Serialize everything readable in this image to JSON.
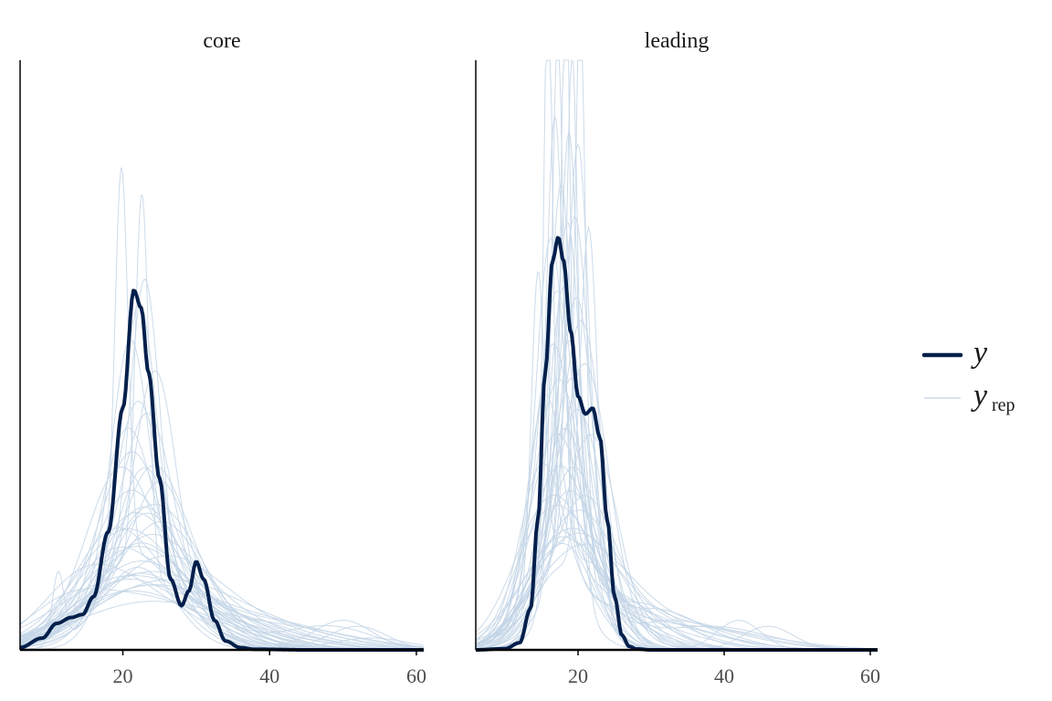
{
  "chart_data": {
    "type": "density",
    "colors": {
      "y": "#011f4b",
      "yrep": "#c3d5e6",
      "axis": "#000000"
    },
    "xlim": [
      6,
      61
    ],
    "x_ticks": [
      20,
      40,
      60
    ],
    "legend": {
      "placement": "right",
      "entries": [
        {
          "key": "y",
          "main": "y",
          "sub": ""
        },
        {
          "key": "yrep",
          "main": "y",
          "sub": "rep"
        }
      ]
    },
    "panels": [
      {
        "title": "core",
        "y_max": 1.0,
        "observed": {
          "name": "y",
          "x": [
            6,
            9,
            11,
            13,
            14.5,
            16,
            18,
            20,
            21.5,
            22.5,
            23.5,
            25,
            26.5,
            28,
            29,
            30,
            31,
            32.5,
            34,
            36,
            38,
            45,
            61
          ],
          "y": [
            0.004,
            0.02,
            0.045,
            0.055,
            0.06,
            0.09,
            0.2,
            0.41,
            0.61,
            0.58,
            0.47,
            0.29,
            0.12,
            0.075,
            0.1,
            0.15,
            0.12,
            0.05,
            0.015,
            0.004,
            0.001,
            0.0,
            0.0
          ]
        },
        "replicates": [
          {
            "peak": 19.8,
            "width": 0.9,
            "height": 0.67,
            "bg_peak": 22,
            "bg_width": 6,
            "bg_height": 0.16
          },
          {
            "peak": 22.6,
            "width": 0.9,
            "height": 0.63,
            "bg_peak": 21,
            "bg_width": 6,
            "bg_height": 0.15
          },
          {
            "peak": 23.0,
            "width": 2.0,
            "height": 0.51,
            "bg_peak": 22,
            "bg_width": 7,
            "bg_height": 0.12
          },
          {
            "peak": 22.2,
            "width": 2.4,
            "height": 0.48,
            "bg_peak": 24,
            "bg_width": 7,
            "bg_height": 0.11
          },
          {
            "peak": 21.0,
            "width": 2.5,
            "height": 0.41,
            "bg_peak": 23,
            "bg_width": 8,
            "bg_height": 0.12
          },
          {
            "peak": 24.5,
            "width": 2.8,
            "height": 0.37,
            "bg_peak": 22,
            "bg_width": 7,
            "bg_height": 0.11
          },
          {
            "peak": 22.0,
            "width": 3.2,
            "height": 0.34,
            "bg_peak": 26,
            "bg_width": 9,
            "bg_height": 0.09
          },
          {
            "peak": 23.5,
            "width": 3.5,
            "height": 0.31,
            "bg_peak": 20,
            "bg_width": 8,
            "bg_height": 0.1
          },
          {
            "peak": 20.5,
            "width": 3.5,
            "height": 0.29,
            "bg_peak": 25,
            "bg_width": 8,
            "bg_height": 0.1
          },
          {
            "peak": 22.5,
            "width": 4.0,
            "height": 0.27,
            "bg_peak": 30,
            "bg_width": 6,
            "bg_height": 0.08
          },
          {
            "peak": 21.5,
            "width": 4.2,
            "height": 0.25,
            "bg_peak": 19,
            "bg_width": 8,
            "bg_height": 0.09
          },
          {
            "peak": 24.0,
            "width": 4.5,
            "height": 0.24,
            "bg_peak": 28,
            "bg_width": 9,
            "bg_height": 0.08
          },
          {
            "peak": 19.5,
            "width": 4.5,
            "height": 0.23,
            "bg_peak": 24,
            "bg_width": 9,
            "bg_height": 0.09
          },
          {
            "peak": 25.5,
            "width": 4.0,
            "height": 0.22,
            "bg_peak": 21,
            "bg_width": 7,
            "bg_height": 0.08
          },
          {
            "peak": 22.8,
            "width": 5.0,
            "height": 0.21,
            "bg_peak": 33,
            "bg_width": 7,
            "bg_height": 0.06
          },
          {
            "peak": 20.8,
            "width": 5.0,
            "height": 0.2,
            "bg_peak": 26,
            "bg_width": 10,
            "bg_height": 0.08
          },
          {
            "peak": 23.8,
            "width": 5.5,
            "height": 0.19,
            "bg_peak": 18,
            "bg_width": 7,
            "bg_height": 0.07
          },
          {
            "peak": 21.2,
            "width": 5.5,
            "height": 0.18,
            "bg_peak": 29,
            "bg_width": 10,
            "bg_height": 0.07
          },
          {
            "peak": 24.8,
            "width": 6.0,
            "height": 0.17,
            "bg_peak": 22,
            "bg_width": 9,
            "bg_height": 0.08
          },
          {
            "peak": 22.0,
            "width": 6.0,
            "height": 0.17,
            "bg_peak": 36,
            "bg_width": 8,
            "bg_height": 0.05
          },
          {
            "peak": 18.5,
            "width": 5.5,
            "height": 0.16,
            "bg_peak": 27,
            "bg_width": 9,
            "bg_height": 0.07
          },
          {
            "peak": 26.0,
            "width": 5.5,
            "height": 0.16,
            "bg_peak": 20,
            "bg_width": 9,
            "bg_height": 0.07
          },
          {
            "peak": 23.2,
            "width": 6.5,
            "height": 0.15,
            "bg_peak": 31,
            "bg_width": 10,
            "bg_height": 0.06
          },
          {
            "peak": 20.2,
            "width": 6.5,
            "height": 0.15,
            "bg_peak": 25,
            "bg_width": 11,
            "bg_height": 0.06
          },
          {
            "peak": 21.8,
            "width": 7.0,
            "height": 0.14,
            "bg_peak": 38,
            "bg_width": 9,
            "bg_height": 0.05
          },
          {
            "peak": 24.2,
            "width": 7.0,
            "height": 0.14,
            "bg_peak": 17,
            "bg_width": 6,
            "bg_height": 0.06
          },
          {
            "peak": 19.0,
            "width": 6.0,
            "height": 0.13,
            "bg_peak": 28,
            "bg_width": 11,
            "bg_height": 0.06
          },
          {
            "peak": 22.4,
            "width": 7.5,
            "height": 0.13,
            "bg_peak": 50,
            "bg_width": 4,
            "bg_height": 0.05
          },
          {
            "peak": 25.0,
            "width": 7.5,
            "height": 0.12,
            "bg_peak": 33,
            "bg_width": 11,
            "bg_height": 0.05
          },
          {
            "peak": 21.0,
            "width": 8.0,
            "height": 0.12,
            "bg_peak": 52,
            "bg_width": 4,
            "bg_height": 0.04
          },
          {
            "peak": 11.2,
            "width": 0.8,
            "height": 0.12,
            "bg_peak": 22,
            "bg_width": 5,
            "bg_height": 0.14
          },
          {
            "peak": 23.6,
            "width": 8.0,
            "height": 0.11,
            "bg_peak": 48,
            "bg_width": 6,
            "bg_height": 0.04
          },
          {
            "peak": 20.0,
            "width": 8.5,
            "height": 0.11,
            "bg_peak": 14,
            "bg_width": 5,
            "bg_height": 0.05
          },
          {
            "peak": 22.9,
            "width": 9.0,
            "height": 0.1,
            "bg_peak": 40,
            "bg_width": 10,
            "bg_height": 0.04
          },
          {
            "peak": 26.5,
            "width": 8.0,
            "height": 0.1,
            "bg_peak": 18,
            "bg_width": 8,
            "bg_height": 0.05
          },
          {
            "peak": 21.4,
            "width": 9.0,
            "height": 0.1,
            "bg_peak": 54,
            "bg_width": 5,
            "bg_height": 0.02
          },
          {
            "peak": 24.6,
            "width": 9.5,
            "height": 0.09,
            "bg_peak": 35,
            "bg_width": 12,
            "bg_height": 0.04
          },
          {
            "peak": 19.3,
            "width": 9.0,
            "height": 0.09,
            "bg_peak": 30,
            "bg_width": 12,
            "bg_height": 0.05
          },
          {
            "peak": 22.1,
            "width": 10.0,
            "height": 0.09,
            "bg_peak": 12,
            "bg_width": 5,
            "bg_height": 0.04
          },
          {
            "peak": 23.4,
            "width": 10.0,
            "height": 0.08,
            "bg_peak": 44,
            "bg_width": 9,
            "bg_height": 0.03
          }
        ]
      },
      {
        "title": "leading",
        "y_max": 1.0,
        "observed": {
          "name": "y",
          "x": [
            6,
            10,
            12,
            13.5,
            14.5,
            15.5,
            16.5,
            17.3,
            18,
            19,
            20,
            21,
            22,
            23,
            24,
            25,
            26,
            27,
            28,
            30,
            40,
            61
          ],
          "y": [
            0.0,
            0.002,
            0.012,
            0.07,
            0.22,
            0.47,
            0.66,
            0.7,
            0.66,
            0.54,
            0.43,
            0.4,
            0.41,
            0.36,
            0.22,
            0.09,
            0.025,
            0.006,
            0.0015,
            0.0,
            0.0,
            0.0
          ]
        },
        "replicates": [
          {
            "peak": 15.9,
            "width": 0.6,
            "height": 1.0,
            "bg_peak": 18,
            "bg_width": 4,
            "bg_height": 0.2
          },
          {
            "peak": 18.3,
            "width": 0.6,
            "height": 1.0,
            "bg_peak": 19,
            "bg_width": 4,
            "bg_height": 0.2
          },
          {
            "peak": 20.3,
            "width": 0.7,
            "height": 0.95,
            "bg_peak": 18,
            "bg_width": 4.5,
            "bg_height": 0.18
          },
          {
            "peak": 17.2,
            "width": 0.8,
            "height": 0.9,
            "bg_peak": 20,
            "bg_width": 4,
            "bg_height": 0.18
          },
          {
            "peak": 19.2,
            "width": 0.8,
            "height": 0.86,
            "bg_peak": 17,
            "bg_width": 4.5,
            "bg_height": 0.17
          },
          {
            "peak": 16.8,
            "width": 1.2,
            "height": 0.8,
            "bg_peak": 21,
            "bg_width": 5,
            "bg_height": 0.15
          },
          {
            "peak": 18.8,
            "width": 1.3,
            "height": 0.76,
            "bg_peak": 16,
            "bg_width": 4,
            "bg_height": 0.15
          },
          {
            "peak": 20.0,
            "width": 1.5,
            "height": 0.72,
            "bg_peak": 19,
            "bg_width": 5,
            "bg_height": 0.14
          },
          {
            "peak": 17.6,
            "width": 1.6,
            "height": 0.7,
            "bg_peak": 22,
            "bg_width": 5,
            "bg_height": 0.13
          },
          {
            "peak": 14.5,
            "width": 0.9,
            "height": 0.52,
            "bg_peak": 18,
            "bg_width": 4,
            "bg_height": 0.18
          },
          {
            "peak": 18.5,
            "width": 1.8,
            "height": 0.66,
            "bg_peak": 24,
            "bg_width": 6,
            "bg_height": 0.1
          },
          {
            "peak": 19.6,
            "width": 2.0,
            "height": 0.63,
            "bg_peak": 17,
            "bg_width": 5,
            "bg_height": 0.12
          },
          {
            "peak": 16.2,
            "width": 2.0,
            "height": 0.6,
            "bg_peak": 20,
            "bg_width": 6,
            "bg_height": 0.12
          },
          {
            "peak": 21.5,
            "width": 1.2,
            "height": 0.62,
            "bg_peak": 18,
            "bg_width": 4,
            "bg_height": 0.14
          },
          {
            "peak": 18.0,
            "width": 2.2,
            "height": 0.57,
            "bg_peak": 25,
            "bg_width": 6,
            "bg_height": 0.09
          },
          {
            "peak": 19.9,
            "width": 2.3,
            "height": 0.55,
            "bg_peak": 15,
            "bg_width": 4,
            "bg_height": 0.1
          },
          {
            "peak": 17.0,
            "width": 2.5,
            "height": 0.52,
            "bg_peak": 21,
            "bg_width": 6,
            "bg_height": 0.11
          },
          {
            "peak": 18.7,
            "width": 2.6,
            "height": 0.5,
            "bg_peak": 28,
            "bg_width": 6,
            "bg_height": 0.08
          },
          {
            "peak": 20.6,
            "width": 2.8,
            "height": 0.48,
            "bg_peak": 17,
            "bg_width": 5,
            "bg_height": 0.1
          },
          {
            "peak": 16.5,
            "width": 2.8,
            "height": 0.46,
            "bg_peak": 23,
            "bg_width": 7,
            "bg_height": 0.09
          },
          {
            "peak": 19.0,
            "width": 3.0,
            "height": 0.44,
            "bg_peak": 30,
            "bg_width": 7,
            "bg_height": 0.07
          },
          {
            "peak": 17.8,
            "width": 3.2,
            "height": 0.42,
            "bg_peak": 14,
            "bg_width": 3,
            "bg_height": 0.08
          },
          {
            "peak": 21.0,
            "width": 3.2,
            "height": 0.4,
            "bg_peak": 19,
            "bg_width": 6,
            "bg_height": 0.09
          },
          {
            "peak": 15.5,
            "width": 2.5,
            "height": 0.38,
            "bg_peak": 22,
            "bg_width": 7,
            "bg_height": 0.08
          },
          {
            "peak": 18.2,
            "width": 3.5,
            "height": 0.37,
            "bg_peak": 33,
            "bg_width": 7,
            "bg_height": 0.05
          },
          {
            "peak": 20.2,
            "width": 3.6,
            "height": 0.35,
            "bg_peak": 16,
            "bg_width": 5,
            "bg_height": 0.08
          },
          {
            "peak": 16.9,
            "width": 3.8,
            "height": 0.33,
            "bg_peak": 26,
            "bg_width": 8,
            "bg_height": 0.07
          },
          {
            "peak": 19.4,
            "width": 4.0,
            "height": 0.31,
            "bg_peak": 42,
            "bg_width": 3,
            "bg_height": 0.05
          },
          {
            "peak": 22.0,
            "width": 3.5,
            "height": 0.3,
            "bg_peak": 18,
            "bg_width": 6,
            "bg_height": 0.08
          },
          {
            "peak": 17.4,
            "width": 4.2,
            "height": 0.29,
            "bg_peak": 29,
            "bg_width": 9,
            "bg_height": 0.05
          },
          {
            "peak": 18.9,
            "width": 4.5,
            "height": 0.27,
            "bg_peak": 46,
            "bg_width": 3.5,
            "bg_height": 0.04
          },
          {
            "peak": 15.0,
            "width": 3.0,
            "height": 0.26,
            "bg_peak": 21,
            "bg_width": 7,
            "bg_height": 0.08
          },
          {
            "peak": 20.8,
            "width": 4.5,
            "height": 0.25,
            "bg_peak": 35,
            "bg_width": 9,
            "bg_height": 0.04
          },
          {
            "peak": 18.1,
            "width": 5.0,
            "height": 0.23,
            "bg_peak": 13,
            "bg_width": 3,
            "bg_height": 0.05
          },
          {
            "peak": 16.3,
            "width": 4.8,
            "height": 0.22,
            "bg_peak": 24,
            "bg_width": 9,
            "bg_height": 0.06
          },
          {
            "peak": 19.7,
            "width": 5.2,
            "height": 0.21,
            "bg_peak": 31,
            "bg_width": 10,
            "bg_height": 0.05
          },
          {
            "peak": 17.9,
            "width": 5.5,
            "height": 0.19,
            "bg_peak": 38,
            "bg_width": 8,
            "bg_height": 0.04
          },
          {
            "peak": 21.3,
            "width": 5.5,
            "height": 0.18,
            "bg_peak": 15,
            "bg_width": 4,
            "bg_height": 0.05
          },
          {
            "peak": 18.6,
            "width": 6.0,
            "height": 0.17,
            "bg_peak": 27,
            "bg_width": 10,
            "bg_height": 0.05
          },
          {
            "peak": 20.4,
            "width": 6.5,
            "height": 0.16,
            "bg_peak": 34,
            "bg_width": 11,
            "bg_height": 0.04
          }
        ]
      }
    ]
  }
}
